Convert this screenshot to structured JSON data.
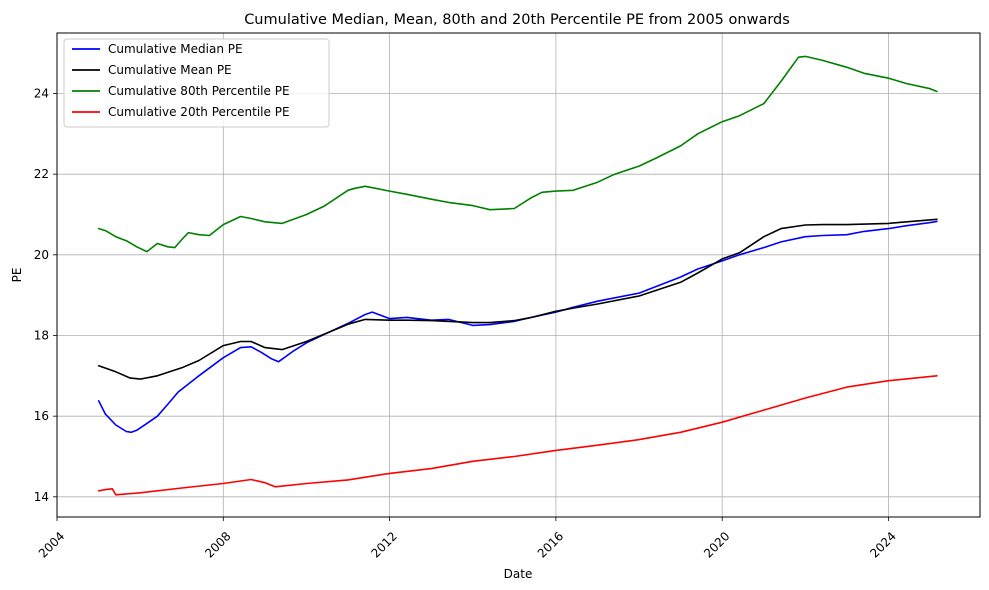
{
  "chart_data": {
    "type": "line",
    "title": "Cumulative Median, Mean, 80th and 20th Percentile PE from 2005 onwards",
    "xlabel": "Date",
    "ylabel": "PE",
    "xlim": [
      "2004-01-01",
      "2026-03-15"
    ],
    "ylim": [
      13.5,
      25.5
    ],
    "x_ticks": [
      {
        "value": "2004-01-01",
        "label": "2004"
      },
      {
        "value": "2008-01-01",
        "label": "2008"
      },
      {
        "value": "2012-01-01",
        "label": "2012"
      },
      {
        "value": "2016-01-01",
        "label": "2016"
      },
      {
        "value": "2020-01-01",
        "label": "2020"
      },
      {
        "value": "2024-01-01",
        "label": "2024"
      }
    ],
    "y_ticks": [
      14,
      16,
      18,
      20,
      22,
      24
    ],
    "grid": true,
    "legend_position": "upper-left",
    "series": [
      {
        "name": "Cumulative Median PE",
        "color": "#0000ff",
        "x": [
          "2005-01-01",
          "2005-03-01",
          "2005-06-01",
          "2005-09-01",
          "2005-10-15",
          "2005-12-01",
          "2006-03-01",
          "2006-06-01",
          "2006-09-01",
          "2006-12-01",
          "2007-06-01",
          "2008-01-01",
          "2008-06-01",
          "2008-09-01",
          "2008-12-01",
          "2009-03-01",
          "2009-05-01",
          "2009-09-01",
          "2010-01-01",
          "2010-06-01",
          "2011-01-01",
          "2011-06-01",
          "2011-08-01",
          "2012-01-01",
          "2012-06-01",
          "2013-01-01",
          "2013-06-01",
          "2014-01-01",
          "2014-06-01",
          "2015-01-01",
          "2015-06-01",
          "2016-01-01",
          "2016-06-01",
          "2017-01-01",
          "2018-01-01",
          "2019-01-01",
          "2019-06-01",
          "2020-01-01",
          "2020-06-01",
          "2021-01-01",
          "2021-06-01",
          "2022-01-01",
          "2022-06-01",
          "2023-01-01",
          "2023-06-01",
          "2024-01-01",
          "2024-06-01",
          "2025-01-01",
          "2025-03-01"
        ],
        "values": [
          16.38,
          16.05,
          15.78,
          15.62,
          15.6,
          15.65,
          15.82,
          16.0,
          16.3,
          16.6,
          17.0,
          17.45,
          17.7,
          17.72,
          17.58,
          17.42,
          17.35,
          17.6,
          17.82,
          18.02,
          18.3,
          18.52,
          18.58,
          18.42,
          18.45,
          18.38,
          18.4,
          18.25,
          18.27,
          18.35,
          18.45,
          18.58,
          18.7,
          18.85,
          19.05,
          19.45,
          19.65,
          19.85,
          20.0,
          20.18,
          20.32,
          20.45,
          20.48,
          20.5,
          20.58,
          20.65,
          20.72,
          20.8,
          20.83
        ]
      },
      {
        "name": "Cumulative Mean PE",
        "color": "#000000",
        "x": [
          "2005-01-01",
          "2005-06-01",
          "2005-10-01",
          "2006-01-01",
          "2006-06-01",
          "2007-01-01",
          "2007-06-01",
          "2008-01-01",
          "2008-06-01",
          "2008-09-01",
          "2009-01-01",
          "2009-06-01",
          "2010-01-01",
          "2011-01-01",
          "2011-06-01",
          "2012-01-01",
          "2012-06-01",
          "2013-01-01",
          "2014-01-01",
          "2014-06-01",
          "2015-01-01",
          "2015-06-01",
          "2016-01-01",
          "2016-06-01",
          "2017-01-01",
          "2018-01-01",
          "2019-01-01",
          "2019-06-01",
          "2020-01-01",
          "2020-06-01",
          "2021-01-01",
          "2021-06-01",
          "2022-01-01",
          "2022-06-01",
          "2023-01-01",
          "2024-01-01",
          "2025-03-01"
        ],
        "values": [
          17.25,
          17.1,
          16.95,
          16.92,
          17.0,
          17.2,
          17.38,
          17.75,
          17.85,
          17.85,
          17.7,
          17.65,
          17.85,
          18.28,
          18.4,
          18.38,
          18.38,
          18.37,
          18.32,
          18.32,
          18.37,
          18.45,
          18.6,
          18.68,
          18.78,
          18.98,
          19.32,
          19.55,
          19.9,
          20.05,
          20.45,
          20.65,
          20.74,
          20.75,
          20.75,
          20.78,
          20.88
        ]
      },
      {
        "name": "Cumulative 80th Percentile PE",
        "color": "#008000",
        "x": [
          "2005-01-01",
          "2005-03-01",
          "2005-06-01",
          "2005-09-01",
          "2005-12-01",
          "2006-03-01",
          "2006-06-01",
          "2006-09-01",
          "2006-11-01",
          "2007-01-01",
          "2007-03-01",
          "2007-06-01",
          "2007-09-01",
          "2008-01-01",
          "2008-06-01",
          "2008-09-01",
          "2009-01-01",
          "2009-06-01",
          "2010-01-01",
          "2010-06-01",
          "2011-01-01",
          "2011-03-01",
          "2011-06-01",
          "2012-01-01",
          "2012-06-01",
          "2013-01-01",
          "2013-06-01",
          "2014-01-01",
          "2014-06-01",
          "2015-01-01",
          "2015-06-01",
          "2015-09-01",
          "2016-01-01",
          "2016-06-01",
          "2017-01-01",
          "2017-06-01",
          "2018-01-01",
          "2018-06-01",
          "2019-01-01",
          "2019-06-01",
          "2020-01-01",
          "2020-06-01",
          "2021-01-01",
          "2021-06-01",
          "2021-11-01",
          "2022-01-01",
          "2022-06-01",
          "2023-01-01",
          "2023-06-01",
          "2024-01-01",
          "2024-06-01",
          "2025-01-01",
          "2025-03-01"
        ],
        "values": [
          20.65,
          20.6,
          20.45,
          20.35,
          20.2,
          20.08,
          20.28,
          20.2,
          20.18,
          20.38,
          20.55,
          20.5,
          20.48,
          20.75,
          20.95,
          20.9,
          20.82,
          20.78,
          21.0,
          21.2,
          21.6,
          21.65,
          21.7,
          21.58,
          21.5,
          21.38,
          21.3,
          21.22,
          21.12,
          21.15,
          21.42,
          21.55,
          21.58,
          21.6,
          21.8,
          22.0,
          22.2,
          22.4,
          22.7,
          23.0,
          23.3,
          23.45,
          23.75,
          24.3,
          24.9,
          24.92,
          24.82,
          24.65,
          24.5,
          24.38,
          24.25,
          24.12,
          24.05
        ]
      },
      {
        "name": "Cumulative 20th Percentile PE",
        "color": "#ff0000",
        "x": [
          "2005-01-01",
          "2005-03-01",
          "2005-05-01",
          "2005-06-01",
          "2006-01-01",
          "2007-01-01",
          "2008-01-01",
          "2008-09-01",
          "2009-01-01",
          "2009-04-01",
          "2010-01-01",
          "2011-01-01",
          "2012-01-01",
          "2013-01-01",
          "2014-01-01",
          "2015-01-01",
          "2016-01-01",
          "2017-01-01",
          "2018-01-01",
          "2019-01-01",
          "2020-01-01",
          "2021-01-01",
          "2022-01-01",
          "2023-01-01",
          "2024-01-01",
          "2025-03-01"
        ],
        "values": [
          14.15,
          14.18,
          14.2,
          14.05,
          14.1,
          14.22,
          14.33,
          14.43,
          14.35,
          14.25,
          14.33,
          14.42,
          14.58,
          14.7,
          14.88,
          15.0,
          15.15,
          15.28,
          15.42,
          15.6,
          15.85,
          16.15,
          16.45,
          16.72,
          16.88,
          17.0
        ]
      }
    ]
  }
}
